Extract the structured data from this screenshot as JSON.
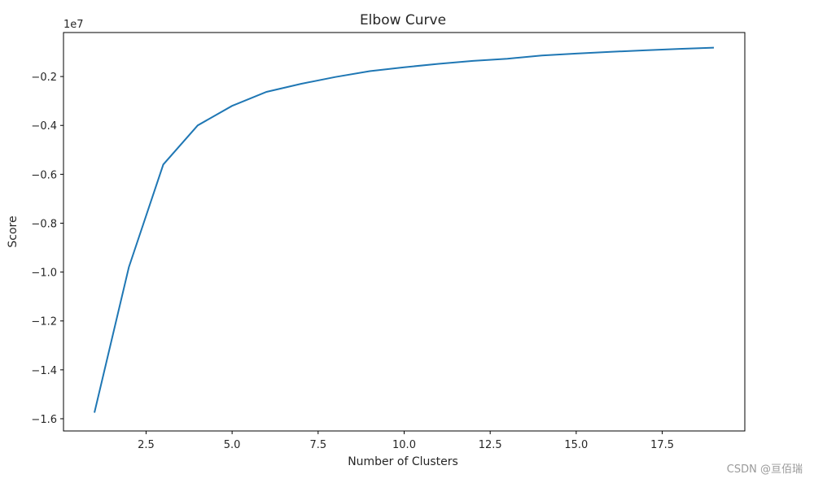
{
  "chart_data": {
    "type": "line",
    "title": "Elbow Curve",
    "xlabel": "Number of Clusters",
    "ylabel": "Score",
    "y_offset_label": "1e7",
    "xlim": [
      0.1,
      19.9
    ],
    "ylim": [
      -1.65,
      -0.02
    ],
    "grid": false,
    "legend": "none",
    "xticks": [
      2.5,
      5.0,
      7.5,
      10.0,
      12.5,
      15.0,
      17.5
    ],
    "xtick_labels": [
      "2.5",
      "5.0",
      "7.5",
      "10.0",
      "12.5",
      "15.0",
      "17.5"
    ],
    "yticks": [
      -0.2,
      -0.4,
      -0.6,
      -0.8,
      -1.0,
      -1.2,
      -1.4,
      -1.6
    ],
    "ytick_labels": [
      "−0.2",
      "−0.4",
      "−0.6",
      "−0.8",
      "−1.0",
      "−1.2",
      "−1.4",
      "−1.6"
    ],
    "x": [
      1,
      2,
      3,
      4,
      5,
      6,
      7,
      8,
      9,
      10,
      11,
      12,
      13,
      14,
      15,
      16,
      17,
      18,
      19
    ],
    "series": [
      {
        "color": "#1f77b4",
        "values": [
          -1.575,
          -0.98,
          -0.56,
          -0.4,
          -0.32,
          -0.263,
          -0.23,
          -0.202,
          -0.178,
          -0.162,
          -0.148,
          -0.136,
          -0.127,
          -0.114,
          -0.106,
          -0.099,
          -0.093,
          -0.087,
          -0.082
        ]
      }
    ]
  },
  "watermark": "CSDN @亘佰瑞"
}
